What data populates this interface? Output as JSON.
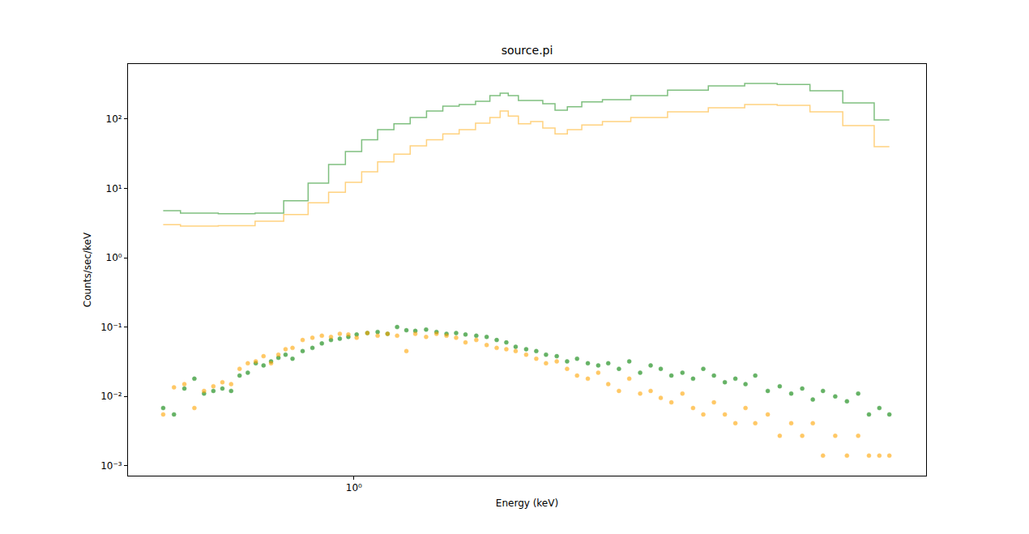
{
  "chart_data": {
    "type": "scatter",
    "title": "source.pi",
    "x_label": "Energy (keV)",
    "y_label": "Counts/sec/keV",
    "log": true,
    "grid": false,
    "xlim": [
      0.44,
      8.0
    ],
    "ylim": [
      0.00072,
      620
    ],
    "xticks": [
      {
        "value": 1,
        "label": "10⁰"
      }
    ],
    "yticks": [
      {
        "value": 0.001,
        "label": "10⁻³"
      },
      {
        "value": 0.01,
        "label": "10⁻²"
      },
      {
        "value": 0.1,
        "label": "10⁻¹"
      },
      {
        "value": 1,
        "label": "10⁰"
      },
      {
        "value": 10,
        "label": "10¹"
      },
      {
        "value": 100,
        "label": "10²"
      }
    ],
    "series": [
      {
        "type": "line",
        "line_style": "steps",
        "color": "#008000",
        "x": [
          0.5,
          0.567,
          0.658,
          0.741,
          0.81,
          0.885,
          0.94,
          1.0,
          1.058,
          1.123,
          1.191,
          1.264,
          1.341,
          1.423,
          1.51,
          1.603,
          1.676,
          1.727,
          1.778,
          1.859,
          1.944,
          2.03,
          2.125,
          2.22,
          2.36,
          2.58,
          2.9,
          3.37,
          3.9,
          4.39,
          4.94,
          5.57,
          6.27,
          7.0
        ],
        "values": [
          4.76,
          4.4,
          4.3,
          4.4,
          6.6,
          11.9,
          22,
          34,
          50,
          70,
          85,
          105,
          130,
          153,
          162,
          180,
          217,
          235,
          217,
          185,
          185,
          166,
          134,
          150,
          176,
          190,
          217,
          260,
          300,
          325,
          315,
          255,
          170,
          97
        ]
      },
      {
        "type": "line",
        "line_style": "steps",
        "color": "#ffa500",
        "x": [
          0.5,
          0.567,
          0.658,
          0.741,
          0.81,
          0.885,
          0.94,
          1.0,
          1.058,
          1.123,
          1.191,
          1.264,
          1.341,
          1.423,
          1.51,
          1.603,
          1.676,
          1.727,
          1.778,
          1.859,
          1.944,
          2.03,
          2.125,
          2.22,
          2.36,
          2.58,
          2.9,
          3.37,
          3.9,
          4.39,
          4.94,
          5.57,
          6.27,
          7.0
        ],
        "values": [
          3.0,
          2.85,
          2.9,
          3.35,
          4.2,
          6.2,
          8.8,
          12.2,
          17.3,
          24,
          31,
          41,
          50,
          61,
          70,
          87,
          105,
          130,
          110,
          85,
          92,
          74,
          61,
          70,
          82,
          92,
          105,
          127,
          145,
          162,
          157,
          127,
          80,
          40
        ]
      },
      {
        "type": "scatter",
        "marker": "circle",
        "color": "#008000",
        "x": [
          0.5,
          0.52,
          0.54,
          0.56,
          0.58,
          0.6,
          0.62,
          0.64,
          0.66,
          0.68,
          0.7,
          0.72,
          0.74,
          0.76,
          0.78,
          0.8,
          0.83,
          0.86,
          0.89,
          0.92,
          0.95,
          0.98,
          1.01,
          1.05,
          1.09,
          1.13,
          1.17,
          1.21,
          1.25,
          1.3,
          1.35,
          1.4,
          1.45,
          1.5,
          1.56,
          1.62,
          1.68,
          1.74,
          1.8,
          1.87,
          1.94,
          2.01,
          2.09,
          2.17,
          2.25,
          2.34,
          2.43,
          2.52,
          2.62,
          2.72,
          2.83,
          2.94,
          3.05,
          3.17,
          3.3,
          3.43,
          3.56,
          3.7,
          3.85,
          4.0,
          4.15,
          4.3,
          4.5,
          4.7,
          4.9,
          5.1,
          5.3,
          5.5,
          5.75,
          6.0,
          6.25,
          6.5,
          6.75,
          7.0
        ],
        "values": [
          0.0068,
          0.0055,
          0.013,
          0.018,
          0.011,
          0.012,
          0.013,
          0.012,
          0.02,
          0.022,
          0.03,
          0.028,
          0.032,
          0.036,
          0.04,
          0.035,
          0.045,
          0.05,
          0.058,
          0.065,
          0.068,
          0.072,
          0.078,
          0.082,
          0.085,
          0.08,
          0.1,
          0.09,
          0.088,
          0.092,
          0.085,
          0.08,
          0.082,
          0.078,
          0.075,
          0.072,
          0.065,
          0.06,
          0.052,
          0.048,
          0.045,
          0.04,
          0.038,
          0.032,
          0.035,
          0.03,
          0.028,
          0.03,
          0.025,
          0.032,
          0.022,
          0.028,
          0.025,
          0.02,
          0.022,
          0.018,
          0.025,
          0.02,
          0.016,
          0.018,
          0.015,
          0.02,
          0.012,
          0.014,
          0.011,
          0.013,
          0.009,
          0.012,
          0.01,
          0.0085,
          0.011,
          0.0055,
          0.0068,
          0.0055
        ]
      },
      {
        "type": "scatter",
        "marker": "circle",
        "color": "#ffa500",
        "x": [
          0.5,
          0.52,
          0.54,
          0.56,
          0.58,
          0.6,
          0.62,
          0.64,
          0.66,
          0.68,
          0.7,
          0.72,
          0.74,
          0.76,
          0.78,
          0.8,
          0.83,
          0.86,
          0.89,
          0.92,
          0.95,
          0.98,
          1.01,
          1.05,
          1.09,
          1.13,
          1.17,
          1.21,
          1.25,
          1.3,
          1.35,
          1.4,
          1.45,
          1.5,
          1.56,
          1.62,
          1.68,
          1.74,
          1.8,
          1.87,
          1.94,
          2.01,
          2.09,
          2.17,
          2.25,
          2.34,
          2.43,
          2.52,
          2.62,
          2.72,
          2.83,
          2.94,
          3.05,
          3.17,
          3.3,
          3.43,
          3.56,
          3.7,
          3.85,
          4.0,
          4.15,
          4.3,
          4.5,
          4.7,
          4.9,
          5.1,
          5.3,
          5.5,
          5.75,
          6.0,
          6.25,
          6.5,
          6.75,
          7.0
        ],
        "values": [
          0.0055,
          0.0135,
          0.015,
          0.0068,
          0.012,
          0.014,
          0.016,
          0.015,
          0.025,
          0.03,
          0.032,
          0.038,
          0.03,
          0.04,
          0.048,
          0.05,
          0.065,
          0.07,
          0.075,
          0.072,
          0.08,
          0.078,
          0.07,
          0.082,
          0.075,
          0.08,
          0.075,
          0.045,
          0.08,
          0.072,
          0.08,
          0.075,
          0.07,
          0.06,
          0.065,
          0.055,
          0.05,
          0.048,
          0.045,
          0.04,
          0.035,
          0.03,
          0.032,
          0.025,
          0.02,
          0.018,
          0.022,
          0.015,
          0.012,
          0.018,
          0.011,
          0.012,
          0.0095,
          0.0082,
          0.011,
          0.0068,
          0.0055,
          0.0082,
          0.0055,
          0.0041,
          0.0068,
          0.0041,
          0.0055,
          0.0027,
          0.0041,
          0.0027,
          0.0041,
          0.0014,
          0.0027,
          0.0014,
          0.0027,
          0.0014,
          0.0014,
          0.0014
        ]
      }
    ]
  }
}
